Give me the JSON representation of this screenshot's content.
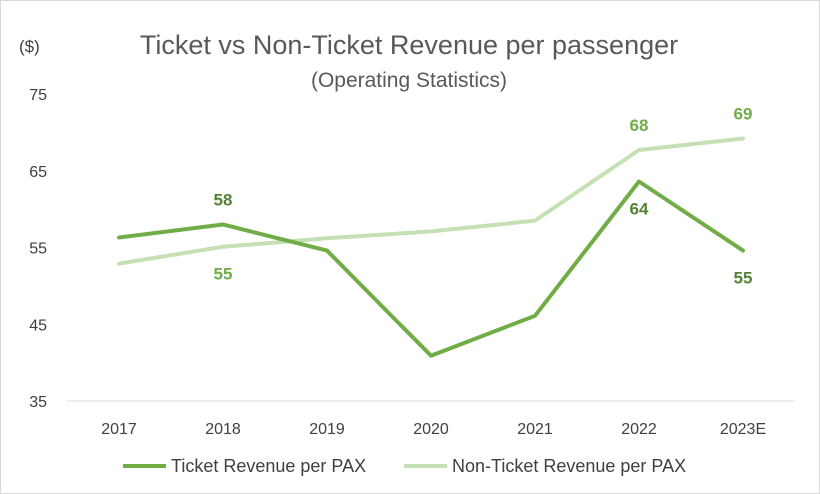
{
  "chart_data": {
    "type": "line",
    "title": "Ticket vs Non-Ticket Revenue per passenger",
    "subtitle": "(Operating Statistics)",
    "ylabel": "($)",
    "xlabel": "",
    "categories": [
      "2017",
      "2018",
      "2019",
      "2020",
      "2021",
      "2022",
      "2023E"
    ],
    "ylim": [
      35,
      75
    ],
    "yticks": [
      35,
      45,
      55,
      65,
      75
    ],
    "grid": false,
    "legend_position": "bottom",
    "series": [
      {
        "name": "Ticket Revenue per PAX",
        "color": "#70ad47",
        "values": [
          56.3,
          58.0,
          54.6,
          40.9,
          46.1,
          63.6,
          54.6
        ],
        "labels": [
          {
            "index": 1,
            "text": "58",
            "placement": "above"
          },
          {
            "index": 5,
            "text": "64",
            "placement": "below"
          },
          {
            "index": 6,
            "text": "55",
            "placement": "below"
          }
        ]
      },
      {
        "name": "Non-Ticket Revenue per PAX",
        "color": "#c5e0b4",
        "values": [
          52.9,
          55.1,
          56.2,
          57.1,
          58.5,
          67.7,
          69.2
        ],
        "labels": [
          {
            "index": 1,
            "text": "55",
            "placement": "below"
          },
          {
            "index": 5,
            "text": "68",
            "placement": "above"
          },
          {
            "index": 6,
            "text": "69",
            "placement": "above"
          }
        ]
      }
    ]
  }
}
